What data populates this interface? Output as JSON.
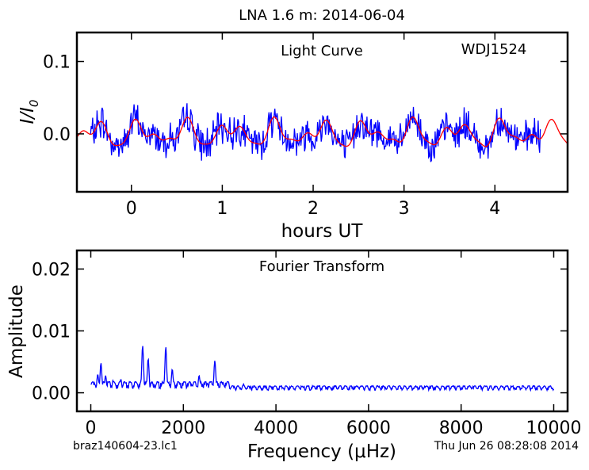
{
  "figure": {
    "title": "LNA 1.6 m:  2014-06-04",
    "footer_left": "braz140604-23.lc1",
    "footer_right": "Thu Jun 26 08:28:08 2014"
  },
  "chart_data": [
    {
      "type": "line",
      "title": "",
      "annotations": [
        "Light Curve",
        "WDJ1524"
      ],
      "xlabel": "hours UT",
      "ylabel": "I/I0",
      "xlim": [
        -0.6,
        4.8
      ],
      "ylim": [
        -0.08,
        0.14
      ],
      "xticks": [
        0,
        1,
        2,
        3,
        4
      ],
      "yticks": [
        0.0,
        0.1
      ],
      "ytick_labels": [
        "0.0",
        "0.1"
      ],
      "data_range_x": [
        -0.45,
        4.5
      ],
      "series": [
        {
          "color": "#0000ff",
          "style": "noisy data, values mostly between -0.04 and 0.05",
          "t0": -0.45,
          "t1": 4.5,
          "amp": 0.018
        },
        {
          "color": "#ff0000",
          "style": "smooth fit",
          "t0": -0.6,
          "t1": 4.8
        }
      ]
    },
    {
      "type": "line",
      "title": "",
      "annotations": [
        "Fourier Transform"
      ],
      "xlabel": "Frequency (μHz)",
      "ylabel": "Amplitude",
      "xlim": [
        -300,
        10300
      ],
      "ylim": [
        -0.003,
        0.023
      ],
      "xticks": [
        0,
        2000,
        4000,
        6000,
        8000,
        10000
      ],
      "yticks": [
        0.0,
        0.01,
        0.02
      ],
      "ytick_labels": [
        "0.00",
        "0.01",
        "0.02"
      ],
      "series": [
        {
          "color": "#0000ff",
          "peaks": [
            {
              "x": 50,
              "y": 0.0018
            },
            {
              "x": 150,
              "y": 0.003
            },
            {
              "x": 220,
              "y": 0.0048
            },
            {
              "x": 320,
              "y": 0.0028
            },
            {
              "x": 480,
              "y": 0.002
            },
            {
              "x": 650,
              "y": 0.0022
            },
            {
              "x": 1120,
              "y": 0.0076
            },
            {
              "x": 1240,
              "y": 0.0055
            },
            {
              "x": 1620,
              "y": 0.0074
            },
            {
              "x": 1760,
              "y": 0.0038
            },
            {
              "x": 2040,
              "y": 0.0018
            },
            {
              "x": 2340,
              "y": 0.0028
            },
            {
              "x": 2680,
              "y": 0.0052
            },
            {
              "x": 3300,
              "y": 0.0014
            }
          ],
          "noise_floor": 0.0008,
          "x_range": [
            0,
            10000
          ]
        }
      ]
    }
  ]
}
